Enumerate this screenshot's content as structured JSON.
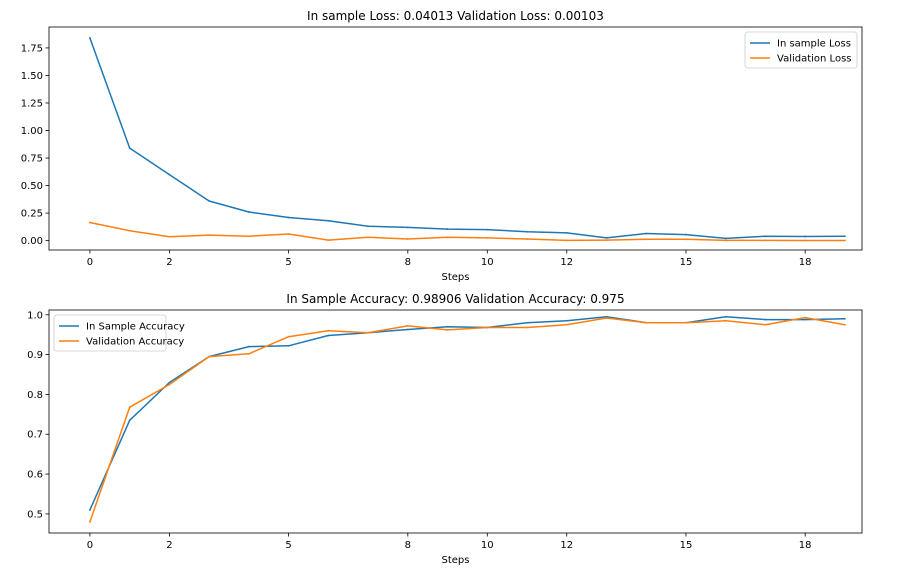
{
  "colors": {
    "series1": "#1f77b4",
    "series2": "#ff7f0e"
  },
  "chart_data": [
    {
      "type": "line",
      "title": "In sample Loss: 0.04013   Validation Loss: 0.00103",
      "xlabel": "Steps",
      "ylabel": "",
      "xlim": [
        -1.03,
        19.43
      ],
      "ylim": [
        -0.085,
        1.94
      ],
      "xticks": [
        0,
        2,
        5,
        8,
        10,
        12,
        15,
        18
      ],
      "yticks": [
        0.0,
        0.25,
        0.5,
        0.75,
        1.0,
        1.25,
        1.5,
        1.75
      ],
      "ytick_labels": [
        "0.00",
        "0.25",
        "0.50",
        "0.75",
        "1.00",
        "1.25",
        "1.50",
        "1.75"
      ],
      "legend_position": "top-right",
      "grid": false,
      "x": [
        0,
        1,
        2,
        3,
        4,
        5,
        6,
        7,
        8,
        9,
        10,
        11,
        12,
        13,
        14,
        15,
        16,
        17,
        18,
        19
      ],
      "series": [
        {
          "name": "In sample Loss",
          "values": [
            1.84,
            0.84,
            0.6,
            0.36,
            0.26,
            0.21,
            0.18,
            0.13,
            0.12,
            0.105,
            0.1,
            0.08,
            0.07,
            0.025,
            0.065,
            0.055,
            0.02,
            0.04,
            0.038,
            0.04
          ]
        },
        {
          "name": "Validation Loss",
          "values": [
            0.165,
            0.09,
            0.035,
            0.05,
            0.04,
            0.06,
            0.005,
            0.03,
            0.015,
            0.03,
            0.025,
            0.015,
            0.002,
            0.005,
            0.012,
            0.012,
            0.002,
            0.002,
            0.001,
            0.001
          ]
        }
      ]
    },
    {
      "type": "line",
      "title": "In Sample Accuracy: 0.98906   Validation Accuracy: 0.975",
      "xlabel": "Steps",
      "ylabel": "",
      "xlim": [
        -1.03,
        19.43
      ],
      "ylim": [
        0.452,
        1.012
      ],
      "xticks": [
        0,
        2,
        5,
        8,
        10,
        12,
        15,
        18
      ],
      "yticks": [
        0.5,
        0.6,
        0.7,
        0.8,
        0.9,
        1.0
      ],
      "ytick_labels": [
        "0.5",
        "0.6",
        "0.7",
        "0.8",
        "0.9",
        "1.0"
      ],
      "legend_position": "top-left",
      "grid": false,
      "x": [
        0,
        1,
        2,
        3,
        4,
        5,
        6,
        7,
        8,
        9,
        10,
        11,
        12,
        13,
        14,
        15,
        16,
        17,
        18,
        19
      ],
      "series": [
        {
          "name": "In Sample Accuracy",
          "values": [
            0.51,
            0.735,
            0.83,
            0.895,
            0.92,
            0.922,
            0.948,
            0.955,
            0.963,
            0.97,
            0.968,
            0.98,
            0.985,
            0.995,
            0.98,
            0.98,
            0.995,
            0.988,
            0.988,
            0.99
          ]
        },
        {
          "name": "Validation Accuracy",
          "values": [
            0.48,
            0.768,
            0.825,
            0.895,
            0.902,
            0.945,
            0.96,
            0.955,
            0.972,
            0.962,
            0.968,
            0.968,
            0.975,
            0.992,
            0.98,
            0.98,
            0.985,
            0.975,
            0.993,
            0.975
          ]
        }
      ]
    }
  ]
}
